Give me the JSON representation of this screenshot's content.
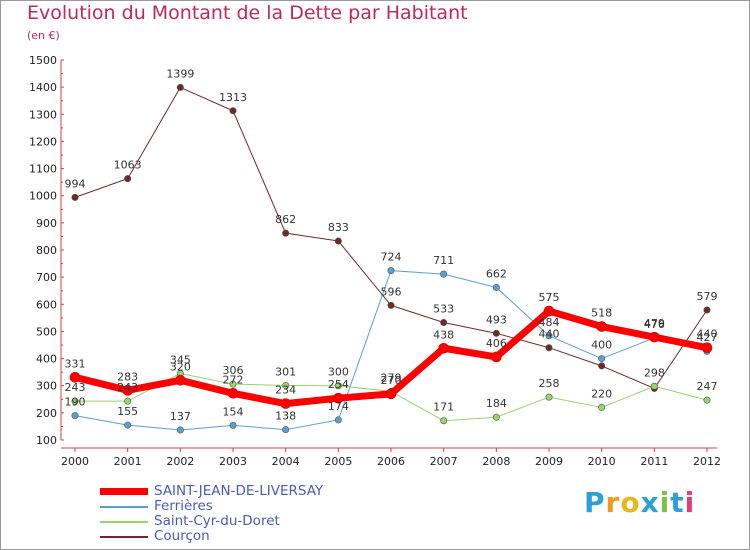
{
  "header": {
    "title": "Evolution du Montant de la Dette par Habitant",
    "subtitle": "(en €)"
  },
  "logo": {
    "text": "Proxiti",
    "colors": [
      "#2f9fd8",
      "#f39a1e",
      "#e8b81a",
      "#2f9fd8",
      "#7cc143",
      "#2f9fd8",
      "#e23c7a"
    ]
  },
  "chart_data": {
    "type": "line",
    "categories": [
      "2000",
      "2001",
      "2002",
      "2003",
      "2004",
      "2005",
      "2006",
      "2007",
      "2008",
      "2009",
      "2010",
      "2011",
      "2012"
    ],
    "ylim": [
      100,
      1500
    ],
    "yticks": [
      100,
      200,
      300,
      400,
      500,
      600,
      700,
      800,
      900,
      1000,
      1100,
      1200,
      1300,
      1400,
      1500
    ],
    "grid": false,
    "legend_position": "bottom-left",
    "series": [
      {
        "name": "Courçon",
        "color": "#6e2a2a",
        "width": 1,
        "values": [
          994,
          1063,
          1399,
          1313,
          862,
          833,
          596,
          533,
          493,
          440,
          373,
          290,
          579
        ],
        "labels": [
          "994",
          "1063",
          "1399",
          "1313",
          "862",
          "833",
          "596",
          "533",
          "493",
          "440",
          "",
          "",
          "579"
        ]
      },
      {
        "name": "Saint-Cyr-du-Doret",
        "color": "#99d36f",
        "width": 1,
        "values": [
          243,
          243,
          345,
          306,
          301,
          300,
          279,
          171,
          184,
          258,
          220,
          298,
          247
        ],
        "labels": [
          "243",
          "243",
          "345",
          "306",
          "301",
          "300",
          "279",
          "171",
          "184",
          "258",
          "220",
          "298",
          "247"
        ]
      },
      {
        "name": "Ferrières",
        "color": "#5a9fd0",
        "width": 1,
        "values": [
          190,
          155,
          137,
          154,
          138,
          174,
          724,
          711,
          662,
          484,
          400,
          476,
          427
        ],
        "labels": [
          "190",
          "155",
          "137",
          "154",
          "138",
          "174",
          "724",
          "711",
          "662",
          "484",
          "400",
          "476",
          "427"
        ]
      },
      {
        "name": "SAINT-JEAN-DE-LIVERSAY",
        "color": "#ff0000",
        "width": 7,
        "values": [
          331,
          283,
          320,
          272,
          234,
          254,
          270,
          438,
          406,
          575,
          518,
          479,
          440
        ],
        "labels": [
          "331",
          "283",
          "320",
          "272",
          "234",
          "254",
          "270",
          "438",
          "406",
          "575",
          "518",
          "479",
          "440"
        ]
      }
    ]
  }
}
